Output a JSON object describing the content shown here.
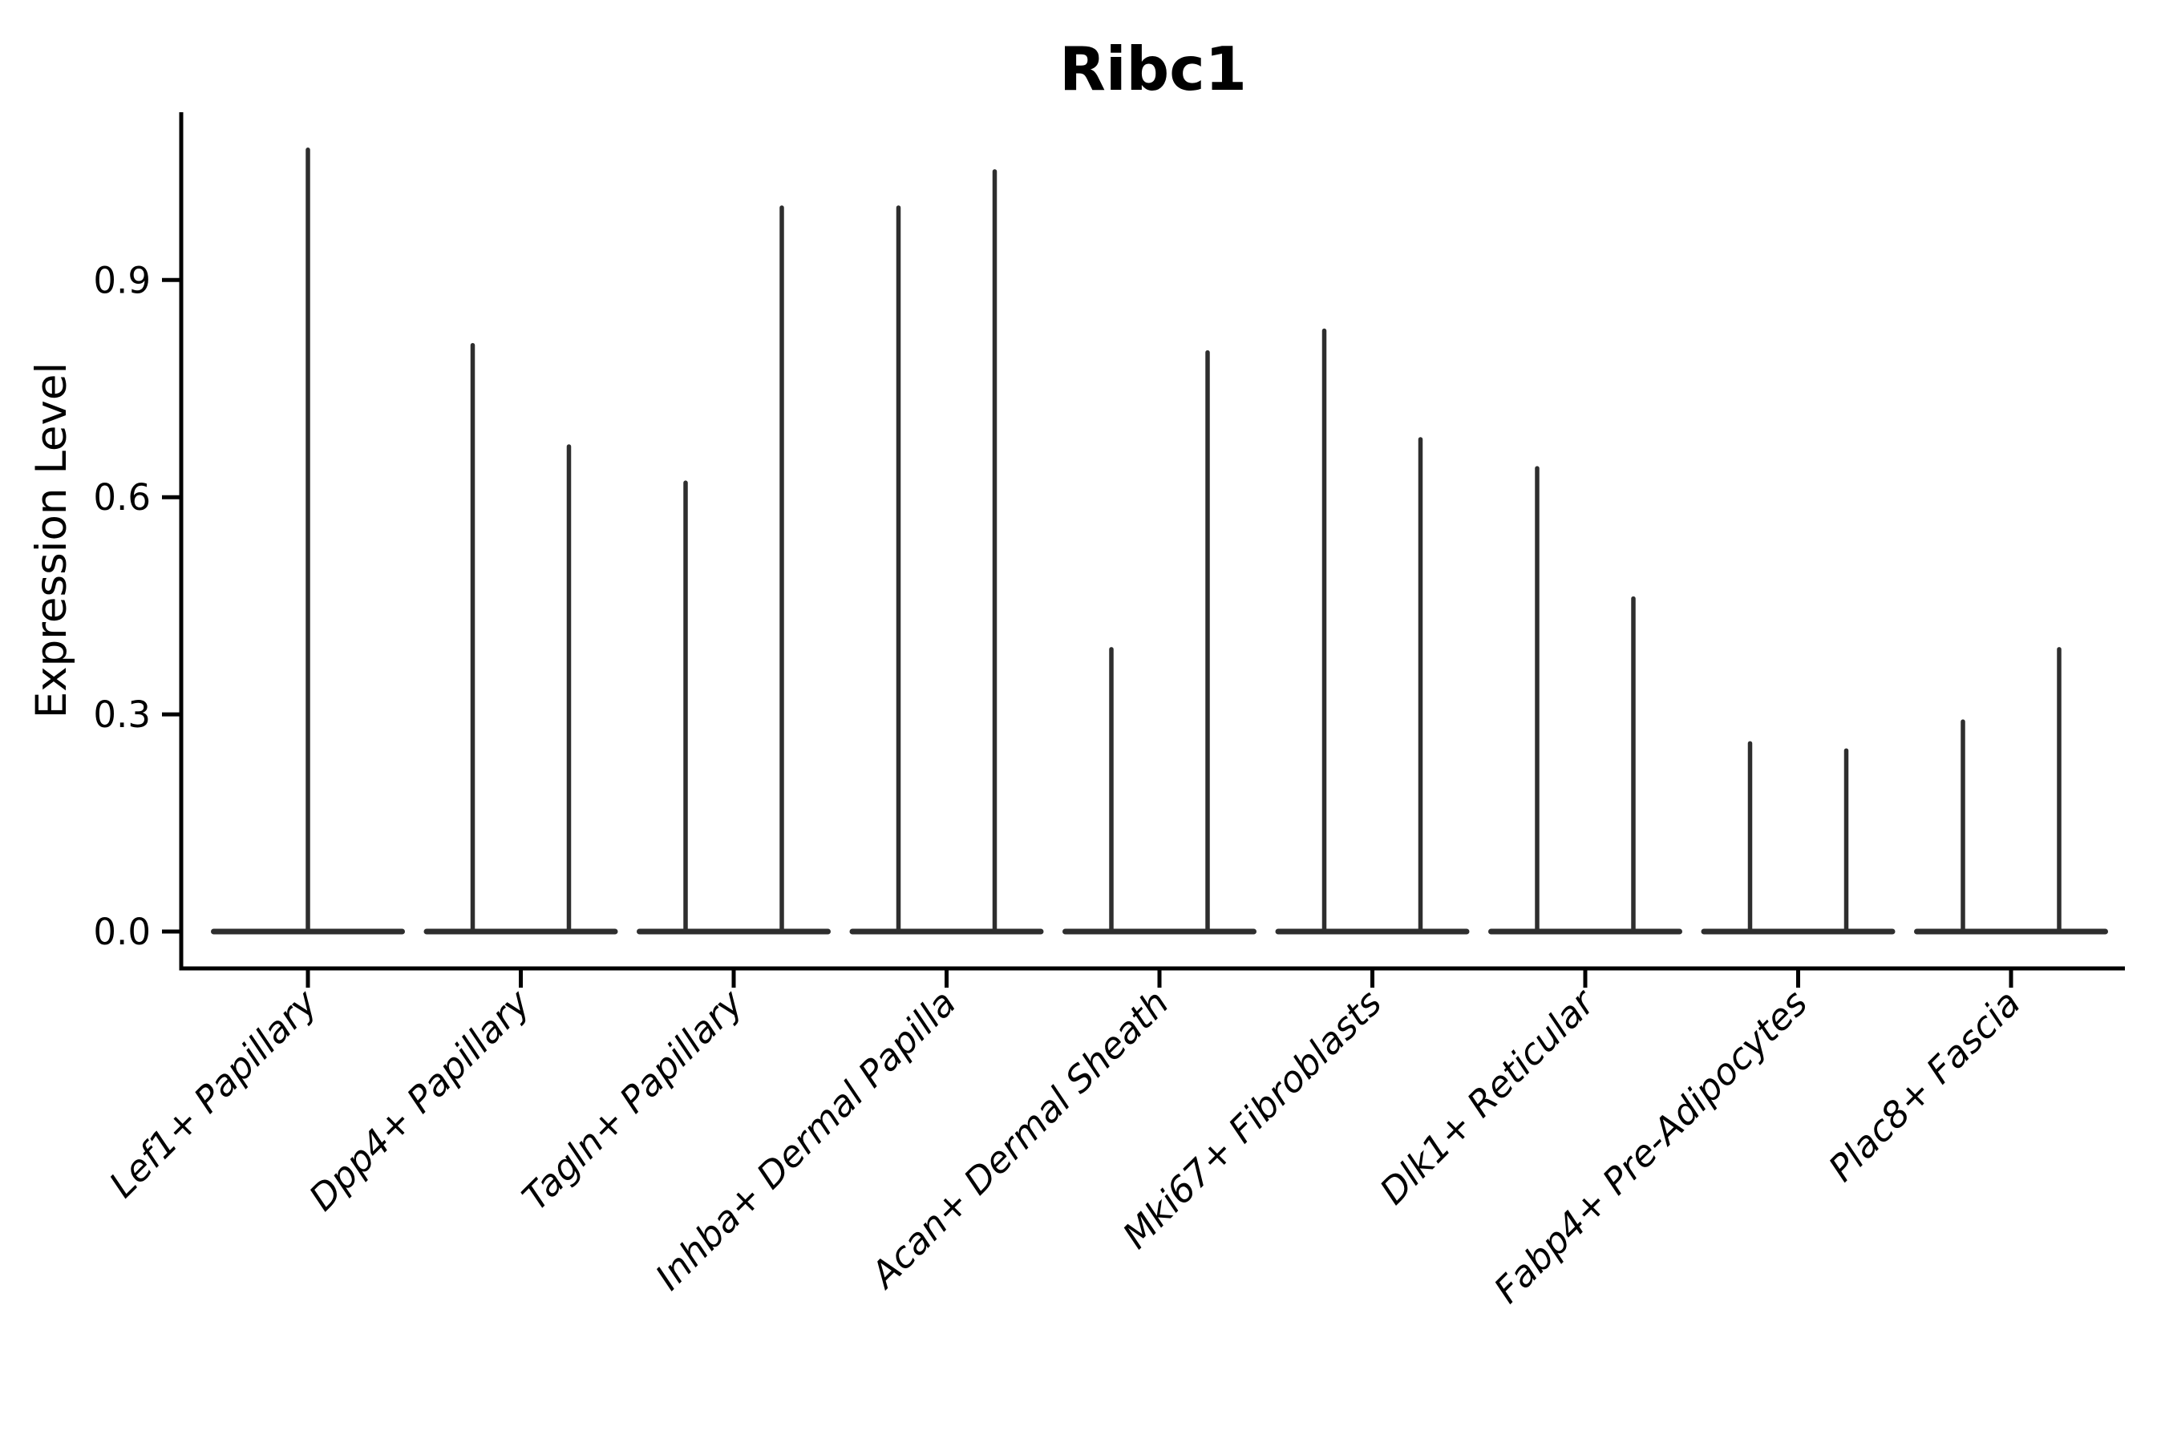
{
  "figure": {
    "title": "Ribc1",
    "background_color": "#ffffff"
  },
  "chart_data": {
    "type": "violin",
    "title": "Ribc1",
    "xlabel": "",
    "ylabel": "Expression Level",
    "categories": [
      "Lef1+ Papillary",
      "Dpp4+ Papillary",
      "Tagln+ Papillary",
      "Inhba+ Dermal Papilla",
      "Acan+ Dermal Sheath",
      "Mki67+ Fibroblasts",
      "Dlk1+ Reticular",
      "Fabp4+ Pre-Adipocytes",
      "Plac8+ Fascia"
    ],
    "violins": [
      {
        "category": "Lef1+ Papillary",
        "spike_maxima": [
          1.08
        ]
      },
      {
        "category": "Dpp4+ Papillary",
        "spike_maxima": [
          0.81,
          0.67
        ]
      },
      {
        "category": "Tagln+ Papillary",
        "spike_maxima": [
          0.62,
          1.0
        ]
      },
      {
        "category": "Inhba+ Dermal Papilla",
        "spike_maxima": [
          1.0,
          1.05
        ]
      },
      {
        "category": "Acan+ Dermal Sheath",
        "spike_maxima": [
          0.39,
          0.8
        ]
      },
      {
        "category": "Mki67+ Fibroblasts",
        "spike_maxima": [
          0.83,
          0.68
        ]
      },
      {
        "category": "Dlk1+ Reticular",
        "spike_maxima": [
          0.64,
          0.46
        ]
      },
      {
        "category": "Fabp4+ Pre-Adipocytes",
        "spike_maxima": [
          0.26,
          0.25
        ]
      },
      {
        "category": "Plac8+ Fascia",
        "spike_maxima": [
          0.29,
          0.39
        ]
      }
    ],
    "violin_body_note": "zero-inflated violins: wide flat body at expression 0 with thin density spike(s) rising to the maxima",
    "ytick_labels": [
      "0.0",
      "0.3",
      "0.6",
      "0.9"
    ],
    "ytick_values": [
      0.0,
      0.3,
      0.6,
      0.9
    ],
    "ylim": [
      -0.05,
      1.14
    ],
    "grid": false,
    "legend": null,
    "x_tick_label_style": "italic",
    "x_tick_label_rotation_deg": 45,
    "colors": {
      "violin": "#2e2e2e",
      "axis": "#000000",
      "text": "#000000",
      "background": "#ffffff"
    }
  }
}
